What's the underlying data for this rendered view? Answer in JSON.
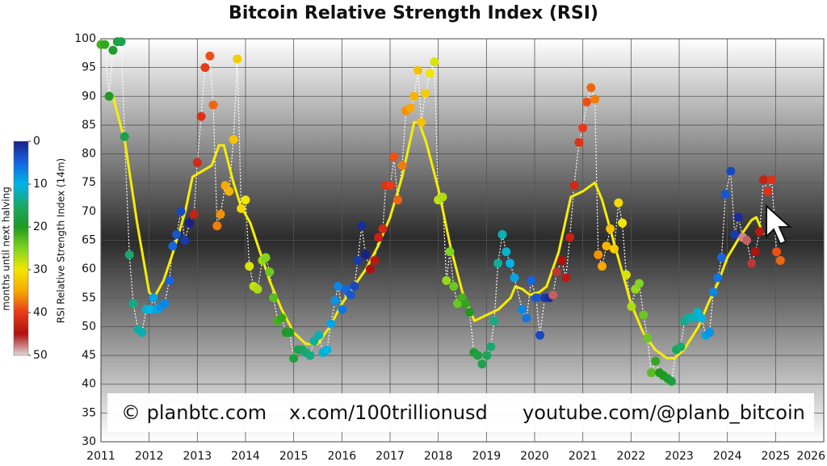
{
  "chart_data": {
    "type": "scatter",
    "title": "Bitcoin Relative Strength Index (RSI)",
    "ylabel": "RSI Relative Strength Index (14m)",
    "xlim": [
      2011,
      2026
    ],
    "xticks": [
      2011,
      2012,
      2013,
      2014,
      2015,
      2016,
      2017,
      2018,
      2019,
      2020,
      2021,
      2022,
      2023,
      2024,
      2025,
      2026
    ],
    "ylim": [
      30,
      100
    ],
    "yticks": [
      30,
      35,
      40,
      45,
      50,
      55,
      60,
      65,
      70,
      75,
      80,
      85,
      90,
      95,
      100
    ],
    "grid": true,
    "colorbar": {
      "label": "months until next halving",
      "clim": [
        0,
        50
      ],
      "ticks": [
        0,
        10,
        20,
        30,
        40,
        50
      ],
      "colormap": [
        "#1a1f8a",
        "#1565e0",
        "#00b4e6",
        "#1aa86a",
        "#1f9a1f",
        "#7fd420",
        "#f2e600",
        "#f7a800",
        "#e83a1a",
        "#b01010",
        "#e0d8d8"
      ]
    },
    "watermark": [
      "© planbtc.com",
      "x.com/100trillionusd",
      "youtube.com/@planb_bitcoin"
    ],
    "series": [
      {
        "color": "#ffffff",
        "x": [
          2011.0,
          2011.08,
          2011.17,
          2011.25,
          2011.34,
          2011.42,
          2011.49,
          2011.59,
          2011.67,
          2011.77,
          2011.85,
          2011.94,
          2012.02,
          2012.09,
          2012.16,
          2012.24,
          2012.32,
          2012.42,
          2012.49,
          2012.57,
          2012.66,
          2012.74,
          2012.84,
          2012.93,
          2013.0,
          2013.08,
          2013.16,
          2013.26,
          2013.33,
          2013.41,
          2013.48,
          2013.58,
          2013.66,
          2013.75,
          2013.83,
          2013.91,
          2014.0,
          2014.08,
          2014.17,
          2014.25,
          2014.35,
          2014.42,
          2014.5,
          2014.58,
          2014.67,
          2014.75,
          2014.84,
          2014.92,
          2015.0,
          2015.09,
          2015.17,
          2015.25,
          2015.34,
          2015.42,
          2015.52,
          2015.61,
          2015.69,
          2015.77,
          2015.86,
          2015.92,
          2016.01,
          2016.09,
          2016.18,
          2016.26,
          2016.33,
          2016.41,
          2016.49,
          2016.59,
          2016.68,
          2016.76,
          2016.85,
          2016.91,
          2017.01,
          2017.08,
          2017.16,
          2017.25,
          2017.33,
          2017.42,
          2017.5,
          2017.58,
          2017.65,
          2017.73,
          2017.83,
          2017.92,
          2018.0,
          2018.09,
          2018.17,
          2018.24,
          2018.32,
          2018.4,
          2018.49,
          2018.57,
          2018.65,
          2018.74,
          2018.82,
          2018.91,
          2019.01,
          2019.09,
          2019.16,
          2019.24,
          2019.33,
          2019.41,
          2019.49,
          2019.58,
          2019.74,
          2019.83,
          2019.93,
          2020.03,
          2020.11,
          2020.21,
          2020.3,
          2020.38,
          2020.46,
          2020.56,
          2020.65,
          2020.73,
          2020.82,
          2020.92,
          2021.0,
          2021.08,
          2021.17,
          2021.25,
          2021.32,
          2021.4,
          2021.49,
          2021.57,
          2021.65,
          2021.74,
          2021.82,
          2021.9,
          2022.01,
          2022.09,
          2022.17,
          2022.26,
          2022.34,
          2022.42,
          2022.51,
          2022.59,
          2022.67,
          2022.76,
          2022.84,
          2022.94,
          2023.03,
          2023.11,
          2023.19,
          2023.28,
          2023.38,
          2023.46,
          2023.55,
          2023.63,
          2023.71,
          2023.8,
          2023.88,
          2023.96,
          2024.07,
          2024.15,
          2024.23,
          2024.32,
          2024.4,
          2024.5,
          2024.58,
          2024.67,
          2024.75,
          2024.84,
          2024.92,
          2025.02,
          2025.1
        ],
        "values": [
          99,
          99,
          90,
          98,
          99.5,
          99.5,
          83,
          62.5,
          54,
          49.5,
          49,
          53,
          53,
          55,
          53,
          53.5,
          54,
          58,
          64,
          66,
          70,
          65,
          68,
          69.5,
          78.5,
          86.5,
          95,
          97,
          88.5,
          67.5,
          69.5,
          74.5,
          73.5,
          82.5,
          96.5,
          70.5,
          72,
          60.5,
          57,
          56.5,
          61.5,
          62,
          59.5,
          55,
          51,
          51.5,
          49,
          49,
          44.5,
          46,
          46,
          45.5,
          45,
          47.5,
          48.5,
          45.5,
          46,
          50.5,
          54.5,
          57,
          53,
          56.5,
          55.5,
          57,
          61.5,
          67.5,
          62.5,
          60,
          61.5,
          65.5,
          67,
          74.5,
          74.5,
          79.5,
          72,
          78,
          87.5,
          88,
          90,
          94.5,
          85.5,
          90.5,
          94,
          96,
          72,
          72.5,
          58,
          63,
          57,
          54,
          55,
          54,
          52.5,
          45.5,
          45,
          43.5,
          45,
          46.5,
          51,
          61,
          66,
          63,
          61,
          58.5,
          53,
          51.5,
          58,
          55,
          48.5,
          55,
          55,
          55.5,
          59.5,
          61.5,
          58.5,
          65.5,
          74.5,
          82,
          84.5,
          89,
          91.5,
          89.5,
          62.5,
          60.5,
          64,
          67,
          63.5,
          71.5,
          68,
          59,
          53.5,
          56.5,
          57.5,
          52,
          48,
          42,
          44,
          42,
          41.5,
          41,
          40.5,
          46,
          46.5,
          51,
          51.5,
          51.5,
          52.5,
          51.5,
          48.5,
          49,
          56,
          58.5,
          62,
          73,
          77,
          66,
          69,
          65.5,
          65,
          61,
          63,
          66.5,
          75.5,
          73.5,
          75.5,
          63,
          61.5
        ],
        "color_values": [
          22,
          21,
          20,
          19,
          18,
          17,
          17,
          15,
          14,
          13,
          12,
          11,
          10,
          9,
          9,
          8,
          7,
          5,
          5,
          4,
          3,
          2,
          0,
          43,
          42,
          41,
          40,
          39,
          38,
          37,
          36,
          35,
          34,
          33,
          32,
          31,
          30,
          29,
          28,
          27,
          26,
          25,
          24,
          23,
          22,
          21,
          20,
          19,
          18,
          17,
          16,
          15,
          14,
          13,
          12,
          11,
          10,
          9,
          8,
          7,
          6,
          5,
          4,
          3,
          2,
          1,
          0,
          45,
          44,
          43,
          42,
          41,
          40,
          39,
          38,
          37,
          36,
          35,
          34,
          33,
          33,
          32,
          30,
          29,
          28,
          27,
          26,
          25,
          24,
          24,
          22,
          21,
          20,
          19,
          18,
          17,
          16,
          15,
          14,
          13,
          12,
          11,
          10,
          9,
          7,
          6,
          5,
          4,
          3,
          2,
          1,
          47,
          46,
          45,
          44,
          43,
          42,
          41,
          40,
          39,
          38,
          37,
          36,
          35,
          34,
          33,
          32,
          31,
          30,
          29,
          27,
          26,
          25,
          24,
          24,
          23,
          21,
          20,
          20,
          19,
          18,
          16,
          15,
          14,
          13,
          12,
          11,
          10,
          9,
          8,
          7,
          6,
          5,
          4,
          3,
          2,
          1,
          48,
          47,
          46,
          45,
          44,
          43,
          41,
          41,
          39,
          38
        ]
      },
      {
        "color": "#f5ee00",
        "x": [
          2011.25,
          2011.5,
          2011.75,
          2012.0,
          2012.1,
          2012.3,
          2012.5,
          2012.75,
          2012.9,
          2013.1,
          2013.3,
          2013.45,
          2013.55,
          2013.75,
          2013.9,
          2014.1,
          2014.3,
          2014.5,
          2014.75,
          2015.0,
          2015.25,
          2015.5,
          2015.75,
          2016.0,
          2016.25,
          2016.5,
          2016.75,
          2017.0,
          2017.25,
          2017.5,
          2017.6,
          2017.75,
          2018.0,
          2018.25,
          2018.5,
          2018.75,
          2019.0,
          2019.25,
          2019.5,
          2019.6,
          2019.75,
          2019.9,
          2020.1,
          2020.25,
          2020.5,
          2020.75,
          2021.0,
          2021.25,
          2021.4,
          2021.6,
          2021.8,
          2022.0,
          2022.25,
          2022.5,
          2022.75,
          2022.9,
          2023.1,
          2023.4,
          2023.6,
          2023.8,
          2024.0,
          2024.25,
          2024.5,
          2024.6,
          2024.75
        ],
        "values": [
          90,
          82,
          68,
          56,
          55,
          58,
          63,
          70,
          76,
          77,
          78,
          81.5,
          81.5,
          75,
          71,
          68,
          63,
          58,
          53,
          49,
          47,
          47,
          50,
          54,
          57,
          60,
          64,
          69,
          76,
          85.5,
          85.5,
          82,
          74,
          64,
          56,
          51,
          52,
          53,
          55,
          57,
          56.5,
          55.5,
          56,
          57,
          63,
          72.5,
          73.5,
          75,
          72,
          66,
          60,
          54,
          49,
          46,
          44.5,
          44.5,
          46,
          50,
          54,
          57.5,
          62,
          65.5,
          68.5,
          69,
          66
        ]
      }
    ]
  }
}
